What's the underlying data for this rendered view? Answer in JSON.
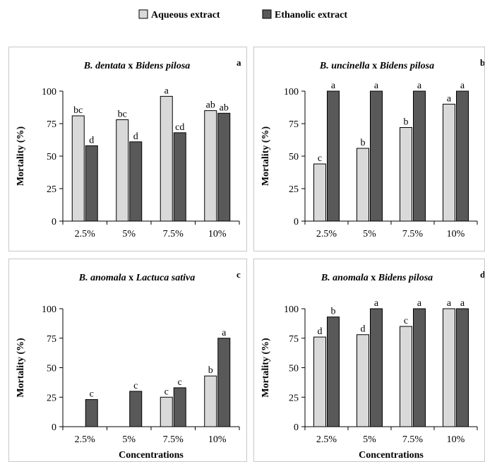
{
  "legend": {
    "series": [
      {
        "name": "Aqueous extract",
        "color": "#d9d9d9"
      },
      {
        "name": "Ethanolic extract",
        "color": "#595959"
      }
    ]
  },
  "colors": {
    "aqueous": "#d9d9d9",
    "ethanolic": "#595959",
    "edge": "#000000"
  },
  "chart_data": [
    {
      "id": "a",
      "type": "bar",
      "title_italic_1": "B. dentata",
      "title_sep": " x ",
      "title_italic_2": "Bidens pilosa",
      "panel_letter": "a",
      "ylabel": "Mortality (%)",
      "xlabel": "",
      "ylim": [
        0,
        100
      ],
      "yticks": [
        0,
        25,
        50,
        75,
        100
      ],
      "categories": [
        "2.5%",
        "5%",
        "7.5%",
        "10%"
      ],
      "series": [
        {
          "name": "Aqueous extract",
          "values": [
            81,
            78,
            96,
            85
          ],
          "labels": [
            "bc",
            "bc",
            "a",
            "ab"
          ]
        },
        {
          "name": "Ethanolic extract",
          "values": [
            58,
            61,
            68,
            83
          ],
          "labels": [
            "d",
            "d",
            "cd",
            "ab"
          ]
        }
      ]
    },
    {
      "id": "b",
      "type": "bar",
      "title_italic_1": "B. uncinella",
      "title_sep": " x ",
      "title_italic_2": "Bidens pilosa",
      "panel_letter": "b",
      "ylabel": "Mortality (%)",
      "xlabel": "",
      "ylim": [
        0,
        100
      ],
      "yticks": [
        0,
        25,
        50,
        75,
        100
      ],
      "categories": [
        "2.5%",
        "5%",
        "7.5%",
        "10%"
      ],
      "series": [
        {
          "name": "Aqueous extract",
          "values": [
            44,
            56,
            72,
            90
          ],
          "labels": [
            "c",
            "b",
            "b",
            "a"
          ]
        },
        {
          "name": "Ethanolic extract",
          "values": [
            100,
            100,
            100,
            100
          ],
          "labels": [
            "a",
            "a",
            "a",
            "a"
          ]
        }
      ]
    },
    {
      "id": "c",
      "type": "bar",
      "title_italic_1": "B. anomala",
      "title_sep": " x ",
      "title_italic_2": "Lactuca sativa",
      "panel_letter": "c",
      "ylabel": "Mortality (%)",
      "xlabel": "Concentrations",
      "ylim": [
        0,
        100
      ],
      "yticks": [
        0,
        25,
        50,
        75,
        100
      ],
      "categories": [
        "2.5%",
        "5%",
        "7.5%",
        "10%"
      ],
      "series": [
        {
          "name": "Aqueous extract",
          "values": [
            0,
            0,
            25,
            43
          ],
          "labels": [
            "",
            "",
            "c",
            "b"
          ]
        },
        {
          "name": "Ethanolic extract",
          "values": [
            23,
            30,
            33,
            75
          ],
          "labels": [
            "c",
            "c",
            "c",
            "a"
          ]
        }
      ]
    },
    {
      "id": "d",
      "type": "bar",
      "title_italic_1": "B. anomala",
      "title_sep": " x ",
      "title_italic_2": "Bidens pilosa",
      "panel_letter": "d",
      "ylabel": "Mortality (%)",
      "xlabel": "Concentrations",
      "ylim": [
        0,
        100
      ],
      "yticks": [
        0,
        25,
        50,
        75,
        100
      ],
      "categories": [
        "2.5%",
        "5%",
        "7.5%",
        "10%"
      ],
      "series": [
        {
          "name": "Aqueous extract",
          "values": [
            76,
            78,
            85,
            100
          ],
          "labels": [
            "d",
            "d",
            "c",
            "a"
          ]
        },
        {
          "name": "Ethanolic extract",
          "values": [
            93,
            100,
            100,
            100
          ],
          "labels": [
            "b",
            "a",
            "a",
            "a"
          ]
        }
      ]
    }
  ]
}
